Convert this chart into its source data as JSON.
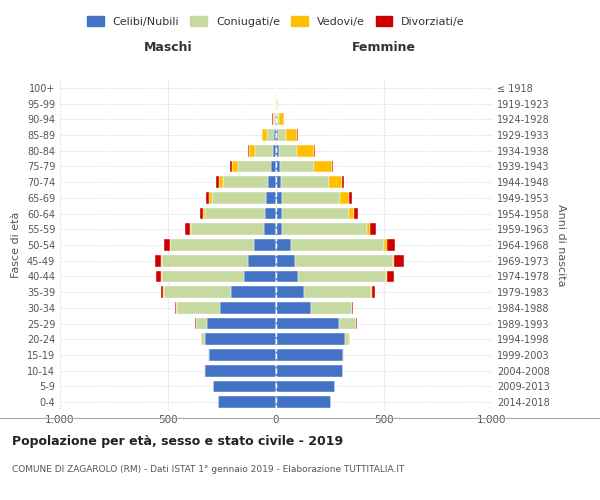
{
  "age_groups": [
    "0-4",
    "5-9",
    "10-14",
    "15-19",
    "20-24",
    "25-29",
    "30-34",
    "35-39",
    "40-44",
    "45-49",
    "50-54",
    "55-59",
    "60-64",
    "65-69",
    "70-74",
    "75-79",
    "80-84",
    "85-89",
    "90-94",
    "95-99",
    "100+"
  ],
  "birth_years": [
    "2014-2018",
    "2009-2013",
    "2004-2008",
    "1999-2003",
    "1994-1998",
    "1989-1993",
    "1984-1988",
    "1979-1983",
    "1974-1978",
    "1969-1973",
    "1964-1968",
    "1959-1963",
    "1954-1958",
    "1949-1953",
    "1944-1948",
    "1939-1943",
    "1934-1938",
    "1929-1933",
    "1924-1928",
    "1919-1923",
    "≤ 1918"
  ],
  "colors": {
    "celibi": "#4472c4",
    "coniugati": "#c5d9a0",
    "vedovi": "#ffc000",
    "divorziati": "#cc0000"
  },
  "male": {
    "celibi": [
      270,
      290,
      330,
      310,
      330,
      320,
      260,
      210,
      150,
      130,
      100,
      55,
      50,
      45,
      35,
      25,
      15,
      8,
      3,
      1,
      1
    ],
    "coniugati": [
      0,
      0,
      3,
      5,
      15,
      50,
      200,
      310,
      380,
      400,
      390,
      340,
      280,
      250,
      210,
      150,
      80,
      35,
      8,
      2,
      0
    ],
    "vedovi": [
      0,
      0,
      0,
      2,
      2,
      2,
      2,
      2,
      2,
      2,
      3,
      5,
      8,
      15,
      20,
      30,
      30,
      20,
      5,
      2,
      0
    ],
    "divorziati": [
      0,
      0,
      0,
      0,
      1,
      2,
      5,
      12,
      22,
      28,
      25,
      20,
      12,
      12,
      12,
      10,
      5,
      2,
      1,
      0,
      0
    ]
  },
  "female": {
    "celibi": [
      255,
      275,
      310,
      310,
      320,
      290,
      160,
      130,
      100,
      90,
      70,
      30,
      28,
      28,
      25,
      18,
      15,
      8,
      5,
      2,
      1
    ],
    "coniugati": [
      0,
      0,
      2,
      5,
      20,
      80,
      190,
      310,
      410,
      450,
      430,
      390,
      310,
      270,
      220,
      160,
      80,
      40,
      10,
      2,
      0
    ],
    "vedovi": [
      0,
      0,
      0,
      1,
      1,
      2,
      2,
      3,
      5,
      8,
      12,
      15,
      25,
      40,
      60,
      80,
      80,
      50,
      20,
      5,
      1
    ],
    "divorziati": [
      0,
      0,
      0,
      0,
      1,
      2,
      5,
      15,
      30,
      45,
      40,
      30,
      18,
      15,
      12,
      8,
      5,
      2,
      1,
      0,
      0
    ]
  },
  "title": "Popolazione per età, sesso e stato civile - 2019",
  "subtitle": "COMUNE DI ZAGAROLO (RM) - Dati ISTAT 1° gennaio 2019 - Elaborazione TUTTITALIA.IT",
  "xlabel_left": "Maschi",
  "xlabel_right": "Femmine",
  "ylabel_left": "Fasce di età",
  "ylabel_right": "Anni di nascita",
  "xlim": 1000,
  "legend_labels": [
    "Celibi/Nubili",
    "Coniugati/e",
    "Vedovi/e",
    "Divorziati/e"
  ],
  "background_color": "#ffffff",
  "grid_color": "#cccccc"
}
